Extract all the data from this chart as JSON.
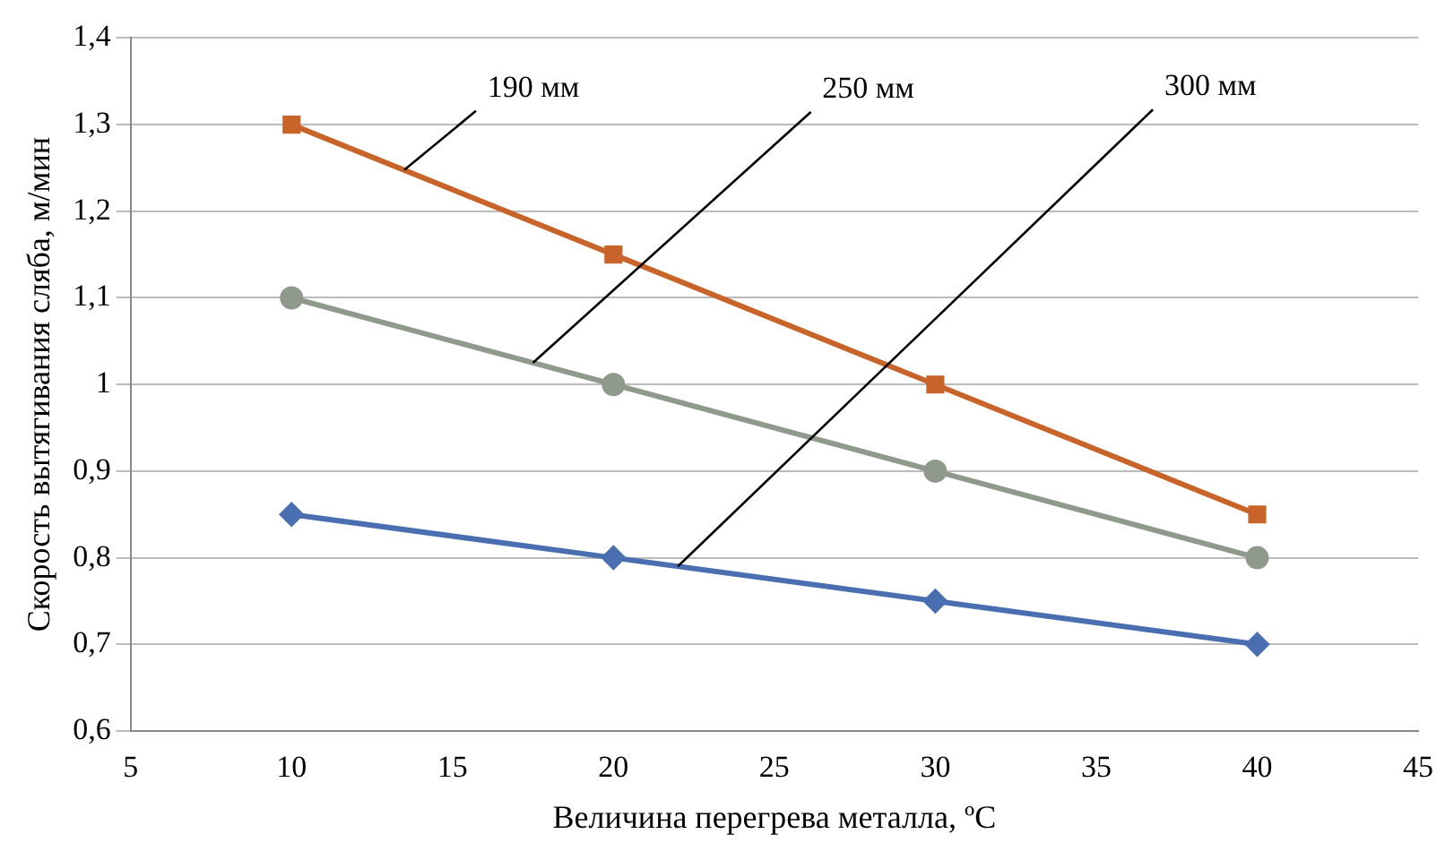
{
  "chart_data": {
    "type": "line",
    "xlabel": "Величина перегрева металла, ºC",
    "ylabel": "Скорость вытягивания сляба, м/мин",
    "x": [
      10,
      20,
      30,
      40
    ],
    "series": [
      {
        "color": "#c8642a",
        "marker": "square",
        "values": [
          1.3,
          1.15,
          1.0,
          0.85
        ]
      },
      {
        "color": "#8f9a8c",
        "marker": "circle",
        "values": [
          1.1,
          1.0,
          0.9,
          0.8
        ]
      },
      {
        "color": "#4a6fb0",
        "marker": "diamond",
        "values": [
          0.85,
          0.8,
          0.75,
          0.7
        ]
      }
    ],
    "xlim": [
      5,
      45
    ],
    "xticks": [
      5,
      10,
      15,
      20,
      25,
      30,
      35,
      40,
      45
    ],
    "ylim": [
      0.6,
      1.4
    ],
    "yticks": [
      {
        "value": 0.6,
        "label": "0,6"
      },
      {
        "value": 0.7,
        "label": "0,7"
      },
      {
        "value": 0.8,
        "label": "0,8"
      },
      {
        "value": 0.9,
        "label": "0,9"
      },
      1,
      {
        "value": 1.1,
        "label": "1,1"
      },
      {
        "value": 1.2,
        "label": "1,2"
      },
      {
        "value": 1.3,
        "label": "1,3"
      },
      {
        "value": 1.4,
        "label": "1,4"
      }
    ],
    "grid": "y",
    "annotations": [
      {
        "text": "190 мм",
        "x": 13.5,
        "y": 1.2475
      },
      {
        "text": "250 мм",
        "x": 17.5,
        "y": 1.025
      },
      {
        "text": "300 мм",
        "x": 22,
        "y": 0.79
      }
    ]
  }
}
